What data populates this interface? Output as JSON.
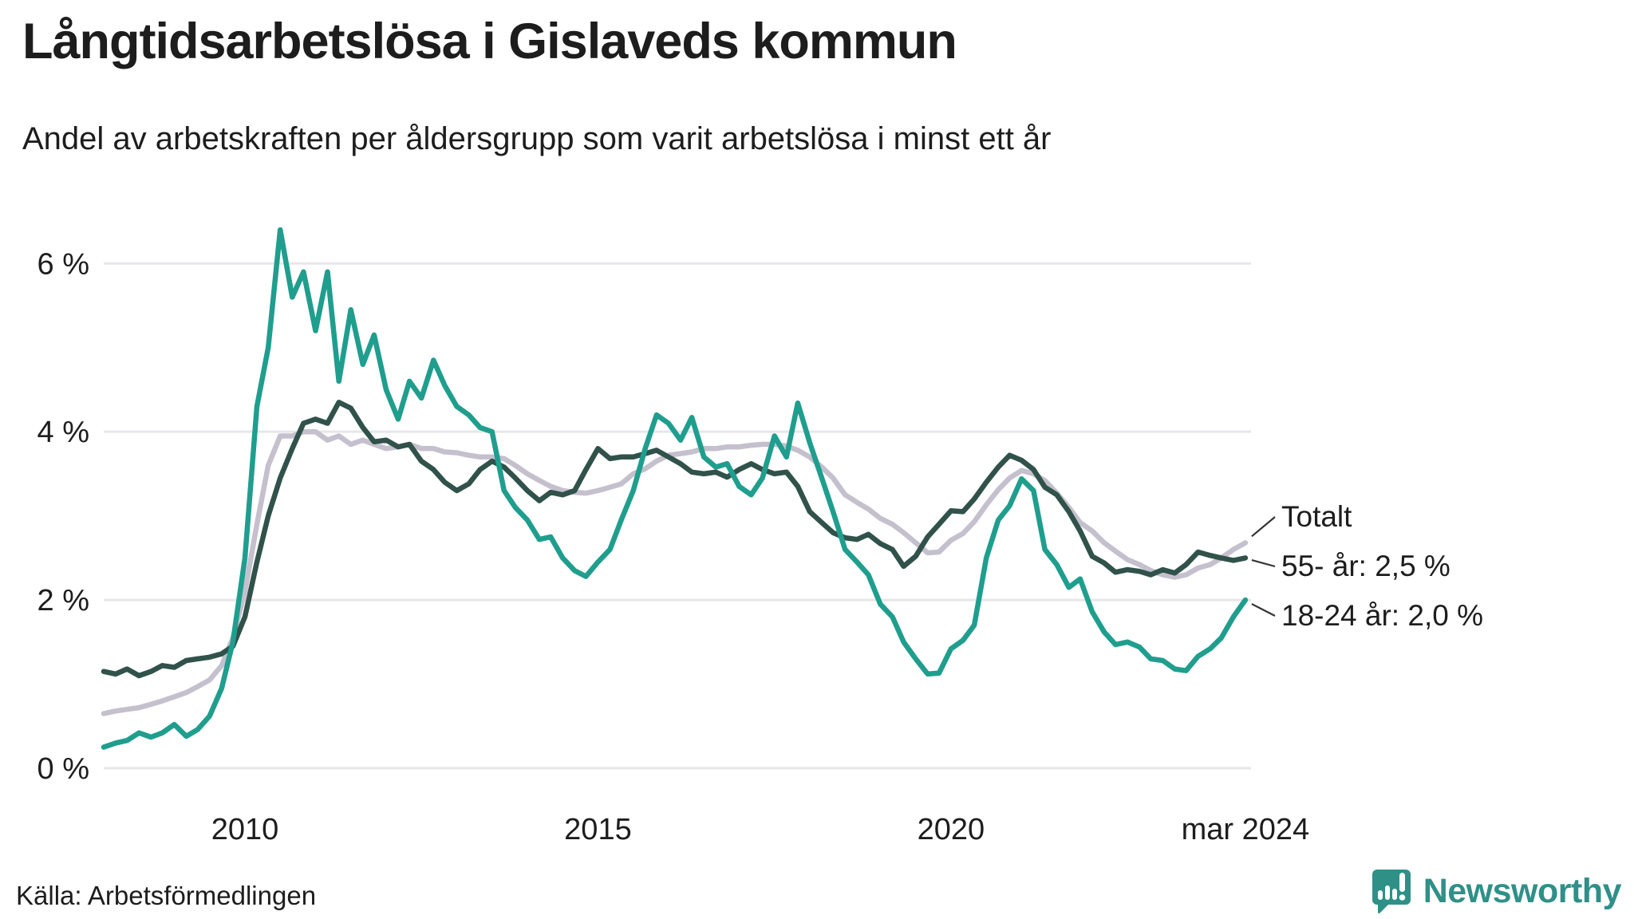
{
  "title": "Långtidsarbetslösa i Gislaveds kommun",
  "subtitle": "Andel av arbetskraften per åldersgrupp som varit arbetslösa i minst ett år",
  "source": "Källa: Arbetsförmedlingen",
  "branding": {
    "name": "Newsworthy",
    "color": "#2f9088"
  },
  "legend": {
    "items": [
      {
        "label": "Totalt"
      },
      {
        "label": "55- år: 2,5 %"
      },
      {
        "label": "18-24 år: 2,0 %"
      }
    ]
  },
  "chart_data": {
    "type": "line",
    "title": "Långtidsarbetslösa i Gislaveds kommun",
    "subtitle": "Andel av arbetskraften per åldersgrupp som varit arbetslösa i minst ett år",
    "unit": "%",
    "grid": true,
    "legend_position": "right-of-line-ends",
    "xlim": [
      2008,
      2024.25
    ],
    "ylim": [
      0,
      6.6
    ],
    "xticks": [
      {
        "v": 2010,
        "label": "2010"
      },
      {
        "v": 2015,
        "label": "2015"
      },
      {
        "v": 2020,
        "label": "2020"
      },
      {
        "v": 2024.17,
        "label": "mar 2024"
      }
    ],
    "yticks": [
      {
        "v": 0,
        "label": "0 %"
      },
      {
        "v": 2,
        "label": "2 %"
      },
      {
        "v": 4,
        "label": "4 %"
      },
      {
        "v": 6,
        "label": "6 %"
      }
    ],
    "x": [
      2008.0,
      2008.17,
      2008.33,
      2008.5,
      2008.67,
      2008.83,
      2009.0,
      2009.17,
      2009.33,
      2009.5,
      2009.67,
      2009.83,
      2010.0,
      2010.17,
      2010.33,
      2010.5,
      2010.67,
      2010.83,
      2011.0,
      2011.17,
      2011.33,
      2011.5,
      2011.67,
      2011.83,
      2012.0,
      2012.17,
      2012.33,
      2012.5,
      2012.67,
      2012.83,
      2013.0,
      2013.17,
      2013.33,
      2013.5,
      2013.67,
      2013.83,
      2014.0,
      2014.17,
      2014.33,
      2014.5,
      2014.67,
      2014.83,
      2015.0,
      2015.17,
      2015.33,
      2015.5,
      2015.67,
      2015.83,
      2016.0,
      2016.17,
      2016.33,
      2016.5,
      2016.67,
      2016.83,
      2017.0,
      2017.17,
      2017.33,
      2017.5,
      2017.67,
      2017.83,
      2018.0,
      2018.17,
      2018.33,
      2018.5,
      2018.67,
      2018.83,
      2019.0,
      2019.17,
      2019.33,
      2019.5,
      2019.67,
      2019.83,
      2020.0,
      2020.17,
      2020.33,
      2020.5,
      2020.67,
      2020.83,
      2021.0,
      2021.17,
      2021.33,
      2021.5,
      2021.67,
      2021.83,
      2022.0,
      2022.17,
      2022.33,
      2022.5,
      2022.67,
      2022.83,
      2023.0,
      2023.17,
      2023.33,
      2023.5,
      2023.67,
      2023.83,
      2024.0,
      2024.17
    ],
    "series": [
      {
        "name": "Totalt",
        "color": "#c4c0cd",
        "end_label": "Totalt",
        "values": [
          0.65,
          0.68,
          0.7,
          0.72,
          0.76,
          0.8,
          0.85,
          0.9,
          0.97,
          1.05,
          1.22,
          1.55,
          2.1,
          2.9,
          3.6,
          3.95,
          3.95,
          4.0,
          4.0,
          3.9,
          3.95,
          3.85,
          3.9,
          3.85,
          3.8,
          3.82,
          3.85,
          3.8,
          3.8,
          3.76,
          3.75,
          3.72,
          3.7,
          3.7,
          3.68,
          3.6,
          3.5,
          3.42,
          3.35,
          3.3,
          3.28,
          3.27,
          3.3,
          3.34,
          3.38,
          3.5,
          3.56,
          3.65,
          3.72,
          3.74,
          3.76,
          3.8,
          3.8,
          3.82,
          3.82,
          3.84,
          3.85,
          3.85,
          3.83,
          3.78,
          3.7,
          3.58,
          3.45,
          3.25,
          3.16,
          3.08,
          2.97,
          2.9,
          2.8,
          2.68,
          2.56,
          2.57,
          2.71,
          2.79,
          2.93,
          3.13,
          3.31,
          3.45,
          3.54,
          3.5,
          3.42,
          3.27,
          3.1,
          2.92,
          2.82,
          2.68,
          2.58,
          2.48,
          2.42,
          2.35,
          2.3,
          2.27,
          2.3,
          2.38,
          2.42,
          2.5,
          2.6,
          2.68
        ]
      },
      {
        "name": "55- år",
        "color": "#30524a",
        "end_label": "55- år: 2,5 %",
        "values": [
          1.15,
          1.12,
          1.18,
          1.1,
          1.15,
          1.22,
          1.2,
          1.28,
          1.3,
          1.32,
          1.36,
          1.45,
          1.8,
          2.45,
          3.0,
          3.45,
          3.8,
          4.1,
          4.15,
          4.1,
          4.35,
          4.28,
          4.05,
          3.88,
          3.9,
          3.82,
          3.85,
          3.65,
          3.55,
          3.4,
          3.3,
          3.38,
          3.55,
          3.65,
          3.58,
          3.45,
          3.3,
          3.18,
          3.28,
          3.25,
          3.3,
          3.55,
          3.8,
          3.68,
          3.7,
          3.7,
          3.74,
          3.78,
          3.7,
          3.62,
          3.52,
          3.5,
          3.52,
          3.46,
          3.55,
          3.62,
          3.55,
          3.5,
          3.52,
          3.35,
          3.05,
          2.92,
          2.8,
          2.74,
          2.72,
          2.78,
          2.67,
          2.6,
          2.4,
          2.52,
          2.75,
          2.9,
          3.06,
          3.05,
          3.2,
          3.4,
          3.58,
          3.72,
          3.66,
          3.55,
          3.34,
          3.25,
          3.05,
          2.82,
          2.52,
          2.44,
          2.33,
          2.36,
          2.34,
          2.3,
          2.36,
          2.32,
          2.42,
          2.57,
          2.53,
          2.5,
          2.47,
          2.5
        ]
      },
      {
        "name": "18-24 år",
        "color": "#1f9e8e",
        "end_label": "18-24 år: 2,0 %",
        "values": [
          0.25,
          0.3,
          0.33,
          0.42,
          0.37,
          0.42,
          0.52,
          0.38,
          0.46,
          0.62,
          0.95,
          1.5,
          2.5,
          4.3,
          5.0,
          6.4,
          5.6,
          5.9,
          5.2,
          5.9,
          4.6,
          5.45,
          4.8,
          5.15,
          4.5,
          4.15,
          4.6,
          4.4,
          4.85,
          4.55,
          4.3,
          4.2,
          4.05,
          4.0,
          3.3,
          3.1,
          2.95,
          2.72,
          2.75,
          2.5,
          2.35,
          2.28,
          2.45,
          2.6,
          2.95,
          3.3,
          3.8,
          4.2,
          4.1,
          3.9,
          4.17,
          3.7,
          3.58,
          3.62,
          3.35,
          3.25,
          3.45,
          3.95,
          3.7,
          4.34,
          3.87,
          3.45,
          3.05,
          2.6,
          2.45,
          2.3,
          1.95,
          1.8,
          1.5,
          1.3,
          1.12,
          1.13,
          1.42,
          1.52,
          1.7,
          2.5,
          2.95,
          3.12,
          3.44,
          3.3,
          2.6,
          2.42,
          2.15,
          2.25,
          1.86,
          1.62,
          1.47,
          1.5,
          1.44,
          1.3,
          1.28,
          1.18,
          1.16,
          1.33,
          1.42,
          1.55,
          1.8,
          2.0
        ]
      }
    ]
  },
  "layout_colors": {
    "gridline": "#e7e6ea",
    "axis_text": "#1d1d1d",
    "leader_line": "#333333"
  }
}
